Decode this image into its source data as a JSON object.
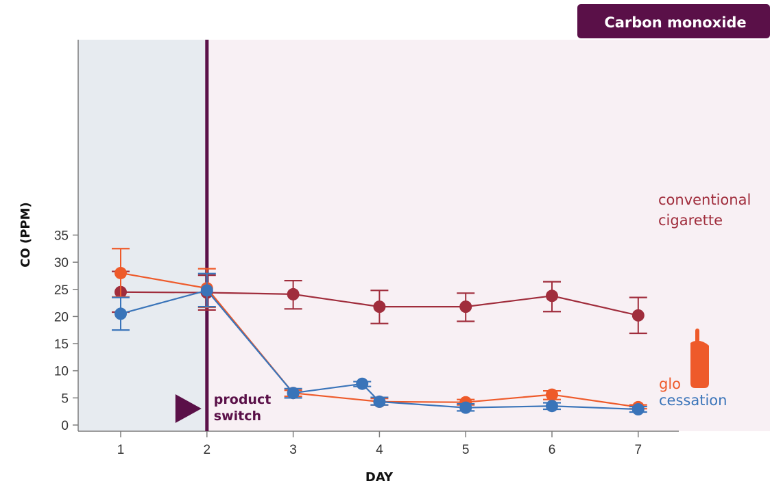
{
  "chart_data": {
    "type": "line",
    "badge": "Carbon monoxide",
    "xlabel": "DAY",
    "ylabel": "CO (PPM)",
    "ylim": [
      0,
      35
    ],
    "yticks": [
      0,
      5,
      10,
      15,
      20,
      25,
      30,
      35
    ],
    "xticks": [
      1,
      2,
      3,
      4,
      5,
      6,
      7
    ],
    "annotation": {
      "line1": "product",
      "line2": "switch",
      "x": 2
    },
    "colors": {
      "conventional": "#a02d3c",
      "glo": "#ee5a2a",
      "cessation": "#3a74b9",
      "switch_line": "#5a1048",
      "badge": "#5a1048",
      "baseline_shade": "#e7ebf0",
      "intervention_shade": "#f8f0f4",
      "axis_tick_blue": "#3a5c86"
    },
    "series": [
      {
        "key": "conventional",
        "label_lines": [
          "conventional",
          "cigarette"
        ],
        "points": [
          {
            "x": 1,
            "y": 24.5,
            "lo": 20.8,
            "hi": 28.3
          },
          {
            "x": 2,
            "y": 24.4,
            "lo": 21.2,
            "hi": 27.6
          },
          {
            "x": 3,
            "y": 24.1,
            "lo": 21.4,
            "hi": 26.6
          },
          {
            "x": 4,
            "y": 21.8,
            "lo": 18.7,
            "hi": 24.8
          },
          {
            "x": 5,
            "y": 21.8,
            "lo": 19.1,
            "hi": 24.3
          },
          {
            "x": 6,
            "y": 23.8,
            "lo": 20.9,
            "hi": 26.4
          },
          {
            "x": 7,
            "y": 20.2,
            "lo": 16.9,
            "hi": 23.5
          }
        ]
      },
      {
        "key": "glo",
        "label_lines": [
          "glo"
        ],
        "points": [
          {
            "x": 1,
            "y": 28.0,
            "lo": 23.6,
            "hi": 32.5
          },
          {
            "x": 2,
            "y": 25.2,
            "lo": 21.7,
            "hi": 28.8
          },
          {
            "x": 3,
            "y": 5.9,
            "lo": 5.3,
            "hi": 6.4
          },
          {
            "x": 4,
            "y": 4.3,
            "lo": 3.7,
            "hi": 4.9
          },
          {
            "x": 5,
            "y": 4.2,
            "lo": 3.7,
            "hi": 4.7
          },
          {
            "x": 6,
            "y": 5.6,
            "lo": 4.7,
            "hi": 6.3
          },
          {
            "x": 7,
            "y": 3.3,
            "lo": 3.0,
            "hi": 3.7
          }
        ]
      },
      {
        "key": "cessation",
        "label_lines": [
          "cessation"
        ],
        "points": [
          {
            "x": 1,
            "y": 20.5,
            "lo": 17.5,
            "hi": 23.5
          },
          {
            "x": 2,
            "y": 24.8,
            "lo": 21.8,
            "hi": 27.9
          },
          {
            "x": 3,
            "y": 5.9,
            "lo": 5.0,
            "hi": 6.7
          },
          {
            "x": 3.8,
            "y": 7.6,
            "lo": 7.1,
            "hi": 8.0
          },
          {
            "x": 4,
            "y": 4.3,
            "lo": 3.7,
            "hi": 5.1
          },
          {
            "x": 5,
            "y": 3.2,
            "lo": 2.6,
            "hi": 3.9
          },
          {
            "x": 6,
            "y": 3.5,
            "lo": 2.9,
            "hi": 4.1
          },
          {
            "x": 7,
            "y": 2.9,
            "lo": 2.4,
            "hi": 3.4
          }
        ]
      }
    ]
  }
}
